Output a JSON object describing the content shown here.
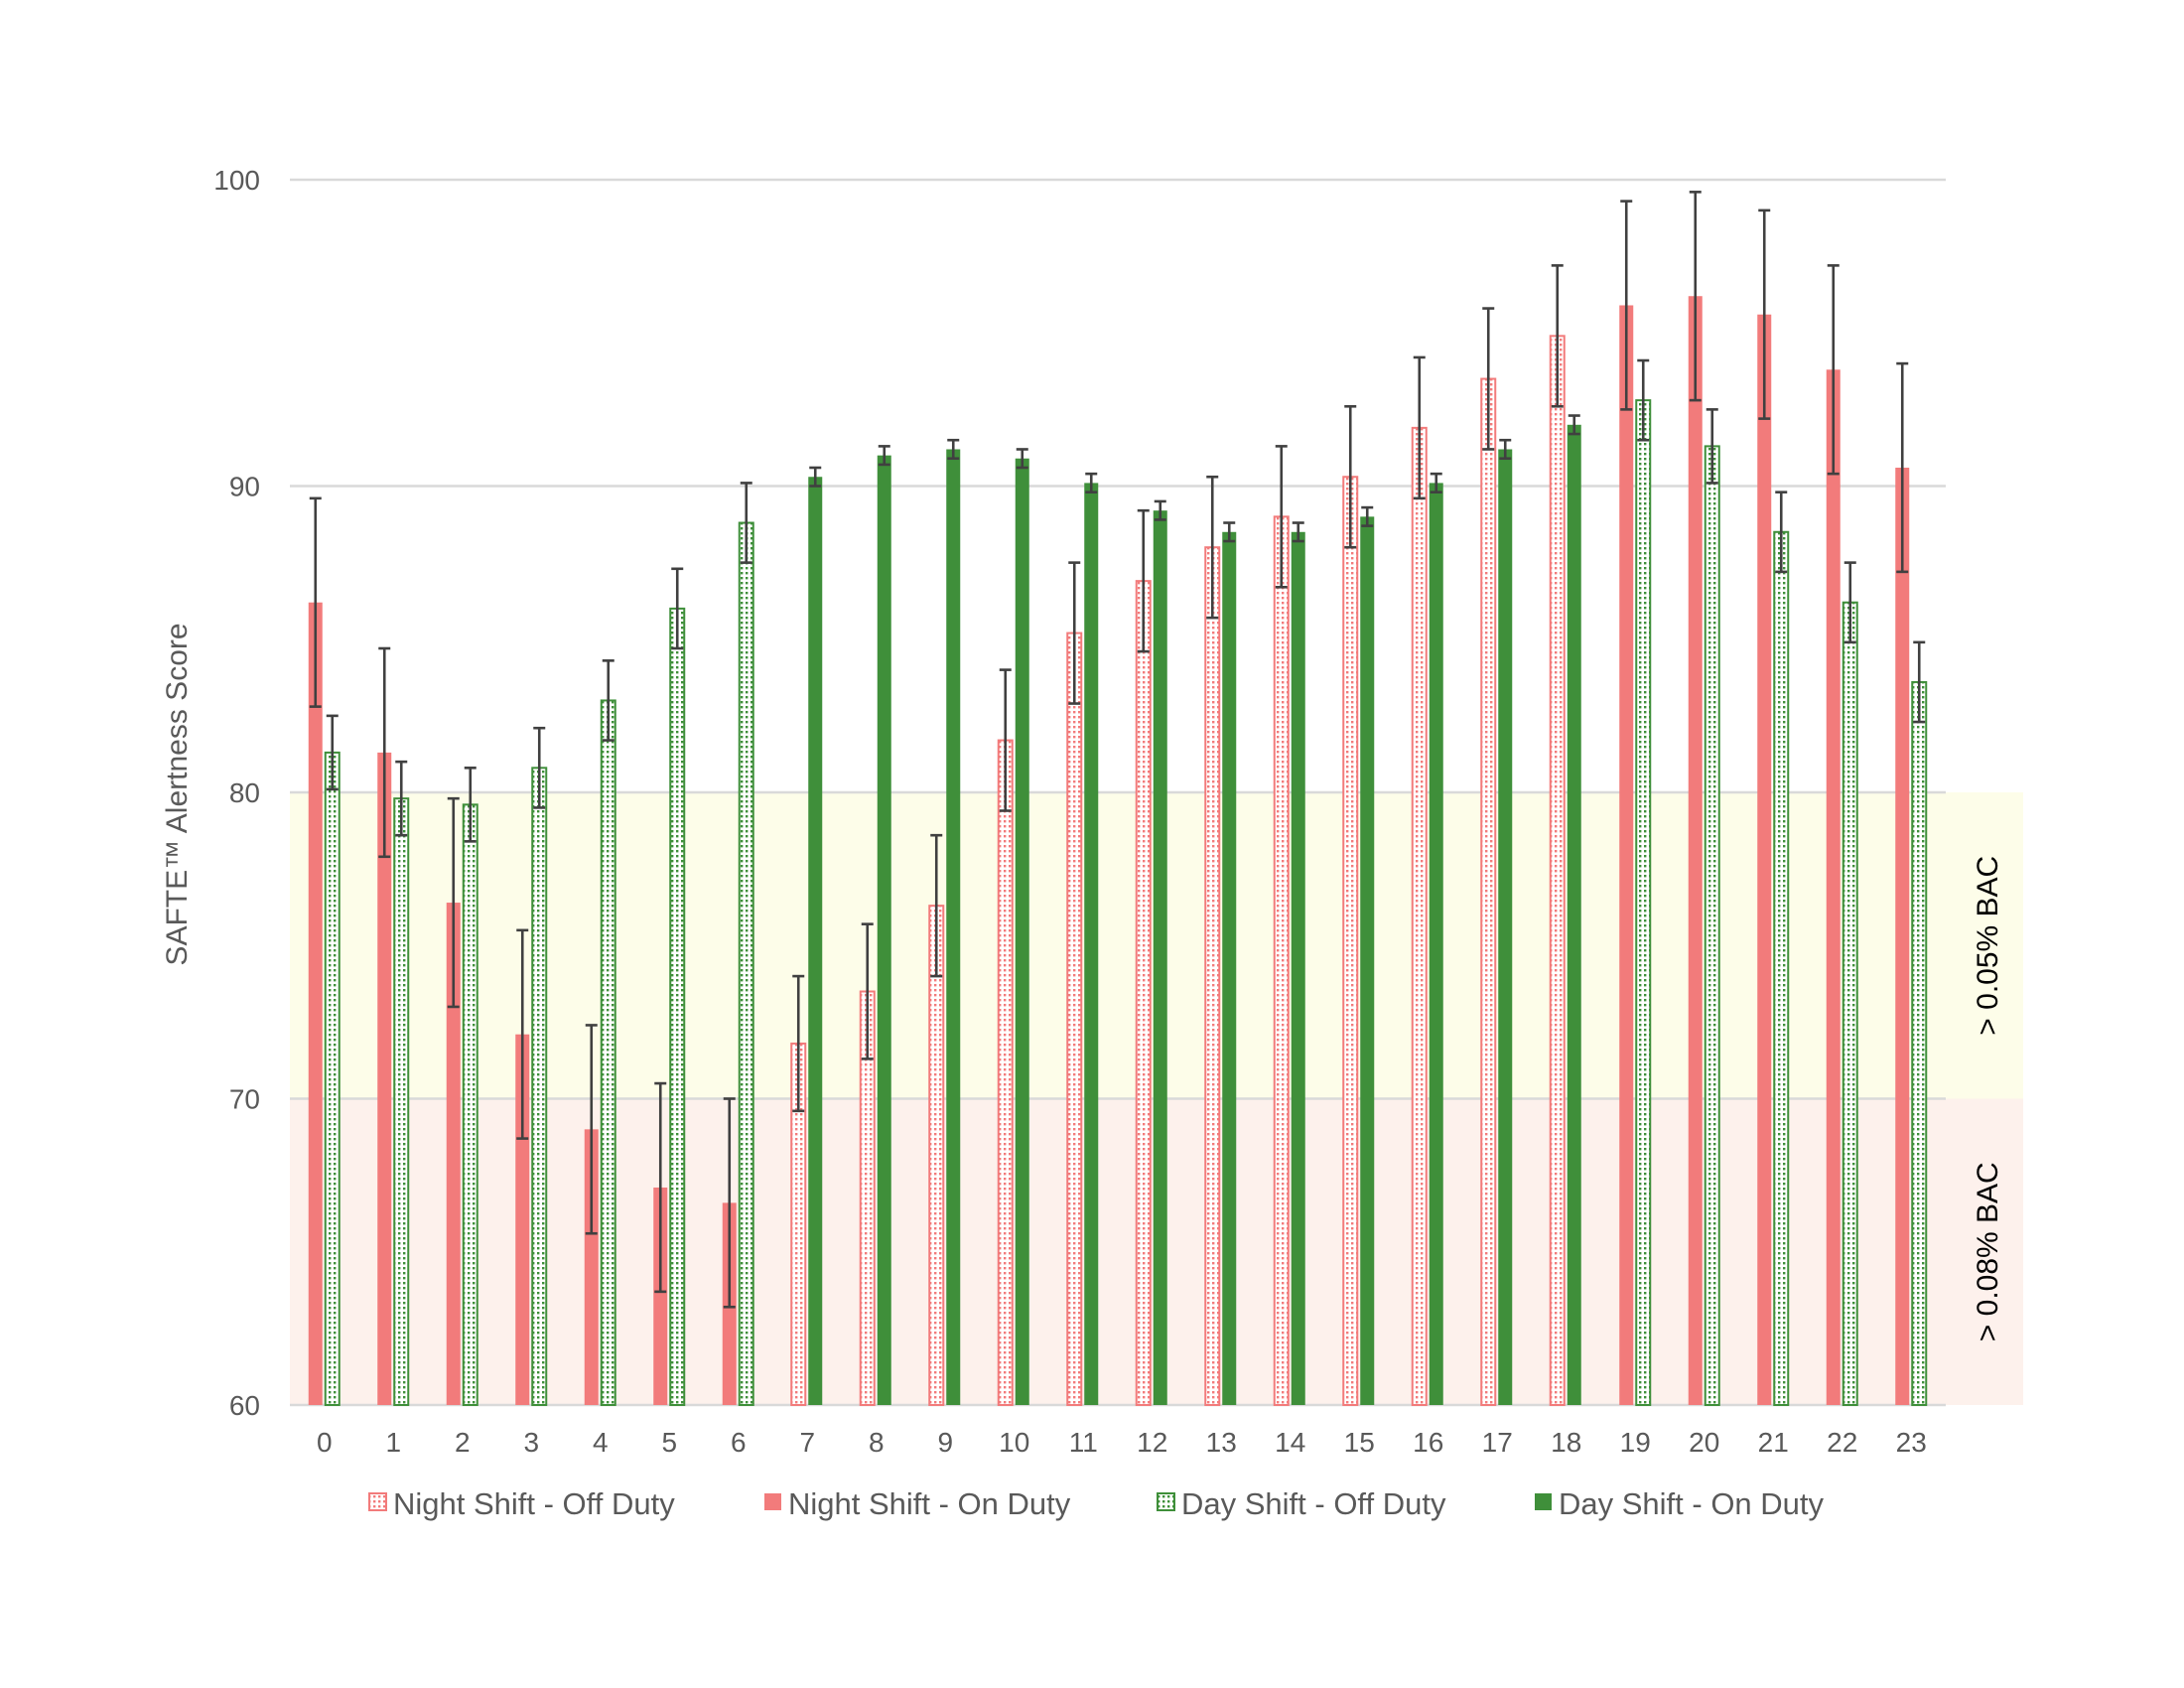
{
  "chart_data": {
    "type": "bar",
    "title": "",
    "xlabel": "",
    "ylabel": "SAFTE™ Alertness Score",
    "ylim": [
      60,
      100
    ],
    "yticks": [
      60,
      70,
      80,
      90,
      100
    ],
    "grid": true,
    "legend_position": "bottom",
    "categories": [
      "0",
      "1",
      "2",
      "3",
      "4",
      "5",
      "6",
      "7",
      "8",
      "9",
      "10",
      "11",
      "12",
      "13",
      "14",
      "15",
      "16",
      "17",
      "18",
      "19",
      "20",
      "21",
      "22",
      "23"
    ],
    "zones": [
      {
        "label": "> 0.05% BAC",
        "from": 70,
        "to": 80,
        "color": "#fdfde9"
      },
      {
        "label": "> 0.08% BAC",
        "from": 60,
        "to": 70,
        "color": "#fdf1ec"
      }
    ],
    "series": [
      {
        "name": "Night Shift - Off Duty",
        "color": "#f27b7b",
        "pattern": "dotted",
        "values": [
          null,
          null,
          null,
          null,
          null,
          null,
          null,
          71.8,
          73.5,
          76.3,
          81.7,
          85.2,
          86.9,
          88.0,
          89.0,
          90.3,
          91.9,
          93.5,
          94.9,
          null,
          null,
          null,
          null,
          null
        ],
        "errors": [
          null,
          null,
          null,
          null,
          null,
          null,
          null,
          2.2,
          2.2,
          2.3,
          2.3,
          2.3,
          2.3,
          2.3,
          2.3,
          2.3,
          2.3,
          2.3,
          2.3,
          null,
          null,
          null,
          null,
          null
        ]
      },
      {
        "name": "Night Shift - On Duty",
        "color": "#f27b7b",
        "pattern": "solid",
        "values": [
          86.2,
          81.3,
          76.4,
          72.1,
          69.0,
          67.1,
          66.6,
          null,
          null,
          null,
          null,
          null,
          null,
          null,
          null,
          null,
          null,
          null,
          null,
          95.9,
          96.2,
          95.6,
          93.8,
          90.6
        ],
        "errors": [
          3.4,
          3.4,
          3.4,
          3.4,
          3.4,
          3.4,
          3.4,
          null,
          null,
          null,
          null,
          null,
          null,
          null,
          null,
          null,
          null,
          null,
          null,
          3.4,
          3.4,
          3.4,
          3.4,
          3.4
        ]
      },
      {
        "name": "Day Shift - Off Duty",
        "color": "#3f8f3a",
        "pattern": "dotted",
        "values": [
          81.3,
          79.8,
          79.6,
          80.8,
          83.0,
          86.0,
          88.8,
          null,
          null,
          null,
          null,
          null,
          null,
          null,
          null,
          null,
          null,
          null,
          null,
          92.8,
          91.3,
          88.5,
          86.2,
          83.6
        ],
        "errors": [
          1.2,
          1.2,
          1.2,
          1.3,
          1.3,
          1.3,
          1.3,
          null,
          null,
          null,
          null,
          null,
          null,
          null,
          null,
          null,
          null,
          null,
          null,
          1.3,
          1.2,
          1.3,
          1.3,
          1.3
        ]
      },
      {
        "name": "Day Shift - On Duty",
        "color": "#3f8f3a",
        "pattern": "solid",
        "values": [
          null,
          null,
          null,
          null,
          null,
          null,
          null,
          90.3,
          91.0,
          91.2,
          90.9,
          90.1,
          89.2,
          88.5,
          88.5,
          89.0,
          90.1,
          91.2,
          92.0,
          null,
          null,
          null,
          null,
          null
        ],
        "errors": [
          null,
          null,
          null,
          null,
          null,
          null,
          null,
          0.3,
          0.3,
          0.3,
          0.3,
          0.3,
          0.3,
          0.3,
          0.3,
          0.3,
          0.3,
          0.3,
          0.3,
          null,
          null,
          null,
          null,
          null
        ]
      }
    ]
  }
}
